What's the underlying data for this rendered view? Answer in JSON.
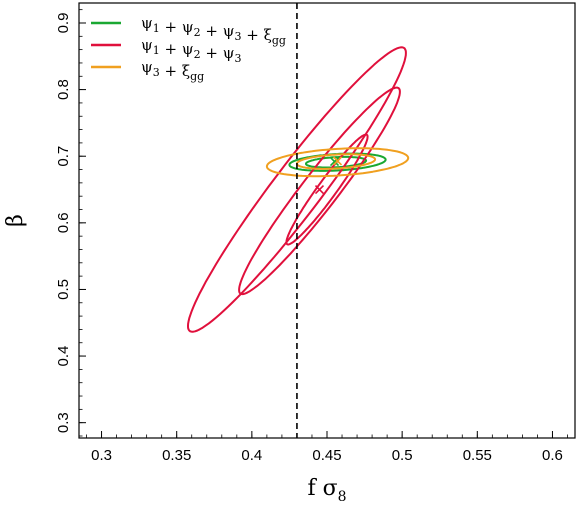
{
  "chart_data": {
    "type": "contour",
    "xlabel": "f σ8",
    "ylabel": "β",
    "xlim": [
      0.285,
      0.615
    ],
    "ylim": [
      0.277,
      0.93
    ],
    "x_ticks": [
      0.3,
      0.35,
      0.4,
      0.45,
      0.5,
      0.55,
      0.6
    ],
    "y_ticks": [
      0.3,
      0.4,
      0.5,
      0.6,
      0.7,
      0.8,
      0.9
    ],
    "x_tick_labels": [
      "0.3",
      "0.35",
      "0.4",
      "0.45",
      "0.5",
      "0.55",
      "0.6"
    ],
    "y_tick_labels": [
      "0.3",
      "0.4",
      "0.5",
      "0.6",
      "0.7",
      "0.8",
      "0.9"
    ],
    "vertical_line": {
      "x": 0.43,
      "style": "dashed"
    },
    "legend": {
      "position": "top-left"
    },
    "series": [
      {
        "name": "ψ1 + ψ2 + ψ3 + ξgg",
        "color": "#1aa832",
        "best_fit": [
          0.455,
          0.692
        ],
        "contours": [
          {
            "center": [
              0.456,
              0.691
            ],
            "extent": [
              0.436,
              0.476,
              0.683,
              0.699
            ]
          },
          {
            "center": [
              0.457,
              0.691
            ],
            "extent": [
              0.425,
              0.489,
              0.678,
              0.704
            ]
          }
        ]
      },
      {
        "name": "ψ1 + ψ2 + ψ3",
        "color": "#e0103c",
        "best_fit": [
          0.445,
          0.65
        ],
        "contours": [
          {
            "center": [
              0.45,
              0.65
            ],
            "extent": [
              0.423,
              0.477,
              0.57,
              0.735
            ]
          },
          {
            "center": [
              0.445,
              0.648
            ],
            "extent": [
              0.386,
              0.493,
              0.495,
              0.805
            ]
          },
          {
            "center": [
              0.43,
              0.65
            ],
            "extent": [
              0.36,
              0.505,
              0.435,
              0.862
            ]
          }
        ]
      },
      {
        "name": "ψ3 + ξgg",
        "color": "#f0a020",
        "best_fit": [
          0.457,
          0.693
        ],
        "contours": [
          {
            "center": [
              0.456,
              0.692
            ],
            "extent": [
              0.43,
              0.482,
              0.681,
              0.703
            ]
          },
          {
            "center": [
              0.457,
              0.691
            ],
            "extent": [
              0.41,
              0.504,
              0.67,
              0.712
            ]
          }
        ]
      }
    ]
  },
  "legend_entries": [
    {
      "parts": [
        [
          "ψ",
          "1"
        ],
        [
          "ψ",
          "2"
        ],
        [
          "ψ",
          "3"
        ],
        [
          "ξ",
          "gg"
        ]
      ],
      "color": "#1aa832"
    },
    {
      "parts": [
        [
          "ψ",
          "1"
        ],
        [
          "ψ",
          "2"
        ],
        [
          "ψ",
          "3"
        ]
      ],
      "color": "#e0103c"
    },
    {
      "parts": [
        [
          "ψ",
          "3"
        ],
        [
          "ξ",
          "gg"
        ]
      ],
      "color": "#f0a020"
    }
  ]
}
